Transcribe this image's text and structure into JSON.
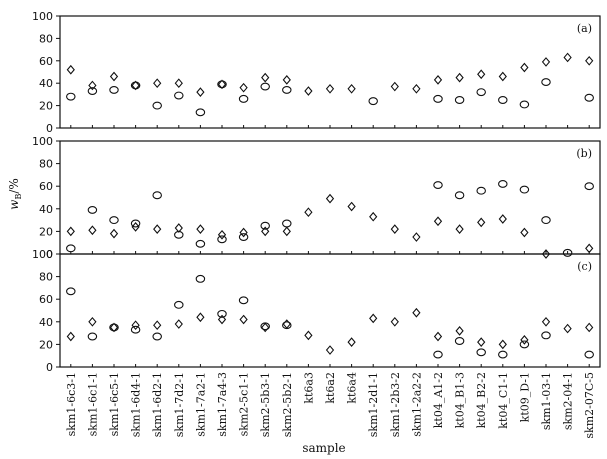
{
  "chart_data": {
    "type": "scatter",
    "xlabel": "sample",
    "ylabel": "w_B/%",
    "ylabel_main": "w",
    "ylabel_sub": "B",
    "ylabel_tail": "/%",
    "categories": [
      "skm1-6c3-1",
      "skm1-6c1-1",
      "skm1-6c5-1",
      "skm1-6d4-1",
      "skm1-6d2-1",
      "skm1-7d2-1",
      "skm1-7a2-1",
      "skm1-7a4-3",
      "skm2-5c1-1",
      "skm2-5b3-1",
      "skm2-5b2-1",
      "kt6a3",
      "kt6a2",
      "kt6a4",
      "skm1-2d1-1",
      "skm1-2b3-2",
      "skm1-2a2-2",
      "kt04_A1-2",
      "kt04_B1-3",
      "kt04_B2-2",
      "kt04_C1-1",
      "kt09_D-1",
      "skm1-03-1",
      "skm2-04-1",
      "skm2-07C-5"
    ],
    "ylim": [
      0,
      100
    ],
    "yticks": [
      0,
      20,
      40,
      60,
      80,
      100
    ],
    "marker_types": [
      "circle",
      "diamond"
    ],
    "panels": [
      {
        "label": "(a)",
        "circle": [
          28,
          33,
          34,
          38,
          20,
          29,
          14,
          39,
          26,
          37,
          34,
          null,
          null,
          null,
          24,
          null,
          null,
          26,
          25,
          32,
          25,
          21,
          41,
          null,
          27
        ],
        "diamond": [
          52,
          38,
          46,
          38,
          40,
          40,
          32,
          39,
          36,
          45,
          43,
          33,
          35,
          35,
          null,
          37,
          35,
          43,
          45,
          48,
          46,
          54,
          59,
          63,
          60
        ]
      },
      {
        "label": "(b)",
        "circle": [
          5,
          39,
          30,
          27,
          52,
          17,
          9,
          13,
          15,
          25,
          27,
          null,
          null,
          null,
          null,
          null,
          null,
          61,
          52,
          56,
          62,
          57,
          30,
          1,
          60
        ],
        "diamond": [
          20,
          21,
          18,
          24,
          22,
          23,
          22,
          17,
          19,
          20,
          20,
          37,
          49,
          42,
          33,
          22,
          15,
          29,
          22,
          28,
          31,
          19,
          0,
          null,
          5
        ]
      },
      {
        "label": "(c)",
        "circle": [
          67,
          27,
          35,
          33,
          27,
          55,
          78,
          47,
          59,
          36,
          37,
          null,
          null,
          null,
          null,
          null,
          null,
          11,
          23,
          13,
          11,
          20,
          28,
          null,
          11
        ],
        "diamond": [
          27,
          40,
          35,
          37,
          37,
          38,
          44,
          42,
          42,
          35,
          38,
          28,
          15,
          22,
          43,
          40,
          48,
          27,
          32,
          22,
          20,
          24,
          40,
          34,
          35
        ]
      }
    ]
  }
}
